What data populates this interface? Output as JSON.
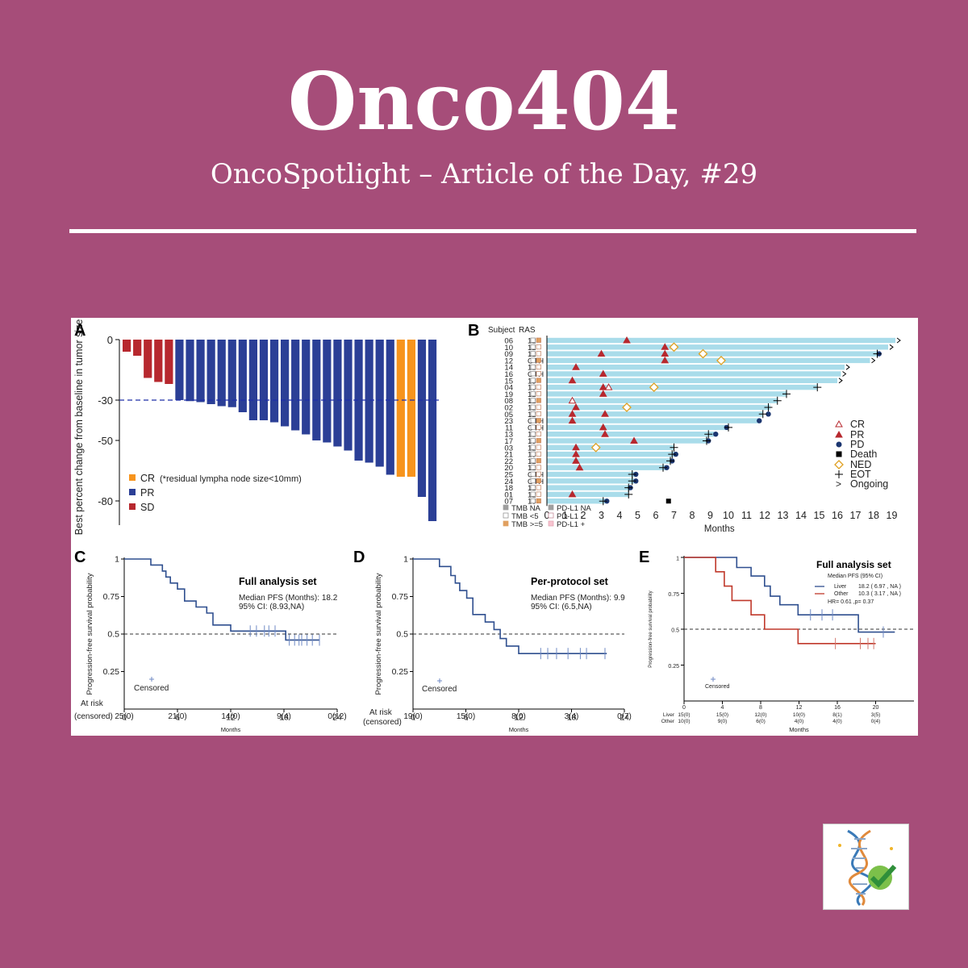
{
  "header": {
    "title": "Onco404",
    "subtitle": "OncoSpotlight – Article of the Day, #29"
  },
  "colors": {
    "background": "#a64d79",
    "cr": "#f7941d",
    "pr": "#2b3f96",
    "sd": "#b7282e",
    "swimmer_bar": "#a9dcea",
    "km_blue": "#2f4f8f",
    "km_red": "#c0392b"
  },
  "logo": {
    "icon": "dna-checkmark-icon"
  },
  "chart_data": [
    {
      "panel": "A",
      "type": "bar",
      "ylabel": "Best percent change from baseline in tumor size (%)",
      "yticks": [
        0,
        -30,
        -50,
        -80
      ],
      "ylim": [
        -92,
        0
      ],
      "reference_line": -30,
      "values": [
        -6,
        -8,
        -19,
        -21,
        -22,
        -30,
        -30.5,
        -31,
        -32,
        -33,
        -33.5,
        -36,
        -40,
        -40,
        -41,
        -43,
        -45,
        -47,
        -50,
        -51,
        -53,
        -55,
        -60,
        -61,
        -63,
        -67,
        -68,
        -68,
        -78,
        -90
      ],
      "categories": [
        "SD",
        "SD",
        "SD",
        "SD",
        "SD",
        "PR",
        "PR",
        "PR",
        "PR",
        "PR",
        "PR",
        "PR",
        "PR",
        "PR",
        "PR",
        "PR",
        "PR",
        "PR",
        "PR",
        "PR",
        "PR",
        "PR",
        "PR",
        "PR",
        "PR",
        "PR",
        "CR",
        "CR",
        "PR",
        "PR"
      ],
      "legend": [
        {
          "key": "CR",
          "label": "CR",
          "note": "(*residual lympha node size<10mm)"
        },
        {
          "key": "PR",
          "label": "PR"
        },
        {
          "key": "SD",
          "label": "SD"
        }
      ]
    },
    {
      "panel": "B",
      "type": "swimmer",
      "xlabel": "Months",
      "xticks": [
        0,
        1,
        2,
        3,
        4,
        5,
        6,
        7,
        8,
        9,
        10,
        11,
        12,
        13,
        14,
        15,
        16,
        17,
        18,
        19
      ],
      "header_subject": "Subject",
      "header_ras": "RAS",
      "subjects": [
        {
          "id": "06",
          "ras": "12",
          "dur": 19.2,
          "ongoing": true
        },
        {
          "id": "10",
          "ras": "12",
          "dur": 18.8,
          "ongoing": true
        },
        {
          "id": "09",
          "ras": "12",
          "dur": 18.3,
          "pd": 18.3
        },
        {
          "id": "12",
          "ras": "OTH",
          "dur": 17.8,
          "ongoing": true
        },
        {
          "id": "14",
          "ras": "12",
          "dur": 16.4,
          "ongoing": true
        },
        {
          "id": "16",
          "ras": "OTH",
          "dur": 16.2,
          "ongoing": true
        },
        {
          "id": "15",
          "ras": "13",
          "dur": 16.0,
          "ongoing": true
        },
        {
          "id": "04",
          "ras": "13",
          "dur": 14.9
        },
        {
          "id": "19",
          "ras": "12",
          "dur": 13.2
        },
        {
          "id": "08",
          "ras": "12",
          "dur": 12.7
        },
        {
          "id": "02",
          "ras": "12",
          "dur": 12.3
        },
        {
          "id": "05",
          "ras": "12",
          "dur": 11.9,
          "pd": 12.2
        },
        {
          "id": "23",
          "ras": "OTH",
          "dur": 11.7,
          "pd": 11.7
        },
        {
          "id": "11",
          "ras": "OTH",
          "dur": 10.0,
          "pd": 9.9
        },
        {
          "id": "13",
          "ras": "12",
          "dur": 9.2,
          "pd": 9.3
        },
        {
          "id": "17",
          "ras": "13",
          "dur": 8.9,
          "pd": 8.9
        },
        {
          "id": "03",
          "ras": "12",
          "dur": 7.0
        },
        {
          "id": "21",
          "ras": "13",
          "dur": 7.0,
          "pd": 7.1
        },
        {
          "id": "22",
          "ras": "12",
          "dur": 6.9,
          "pd": 6.9
        },
        {
          "id": "20",
          "ras": "12",
          "dur": 6.6,
          "pd": 6.6
        },
        {
          "id": "25",
          "ras": "OTH",
          "dur": 4.8,
          "pd": 4.9
        },
        {
          "id": "24",
          "ras": "OTH",
          "dur": 4.8,
          "pd": 4.9
        },
        {
          "id": "18",
          "ras": "12",
          "dur": 4.6,
          "pd": 4.6
        },
        {
          "id": "01",
          "ras": "12",
          "dur": 4.5
        },
        {
          "id": "07",
          "ras": "13",
          "dur": 3.2,
          "pd": 3.3
        }
      ],
      "responses": [
        {
          "row": 0,
          "t": 4.4,
          "type": "PR"
        },
        {
          "row": 1,
          "t": 6.5,
          "type": "PR"
        },
        {
          "row": 1,
          "t": 7.0,
          "type": "NED"
        },
        {
          "row": 2,
          "t": 3.0,
          "type": "PR"
        },
        {
          "row": 2,
          "t": 6.5,
          "type": "PR"
        },
        {
          "row": 2,
          "t": 8.6,
          "type": "NED"
        },
        {
          "row": 3,
          "t": 6.5,
          "type": "PR"
        },
        {
          "row": 3,
          "t": 9.6,
          "type": "NED"
        },
        {
          "row": 4,
          "t": 1.6,
          "type": "PR"
        },
        {
          "row": 5,
          "t": 3.1,
          "type": "PR"
        },
        {
          "row": 6,
          "t": 1.4,
          "type": "PR"
        },
        {
          "row": 7,
          "t": 3.1,
          "type": "PR"
        },
        {
          "row": 7,
          "t": 3.4,
          "type": "CR"
        },
        {
          "row": 7,
          "t": 5.9,
          "type": "NED"
        },
        {
          "row": 8,
          "t": 3.1,
          "type": "PR"
        },
        {
          "row": 9,
          "t": 1.4,
          "type": "CR"
        },
        {
          "row": 10,
          "t": 1.6,
          "type": "PR"
        },
        {
          "row": 10,
          "t": 4.4,
          "type": "NED"
        },
        {
          "row": 11,
          "t": 1.4,
          "type": "PR"
        },
        {
          "row": 11,
          "t": 3.2,
          "type": "PR"
        },
        {
          "row": 12,
          "t": 1.4,
          "type": "PR"
        },
        {
          "row": 13,
          "t": 3.1,
          "type": "PR"
        },
        {
          "row": 14,
          "t": 3.2,
          "type": "PR"
        },
        {
          "row": 15,
          "t": 4.8,
          "type": "PR"
        },
        {
          "row": 16,
          "t": 1.6,
          "type": "PR"
        },
        {
          "row": 16,
          "t": 2.7,
          "type": "NED"
        },
        {
          "row": 17,
          "t": 1.6,
          "type": "PR"
        },
        {
          "row": 18,
          "t": 1.6,
          "type": "PR"
        },
        {
          "row": 19,
          "t": 1.8,
          "type": "PR"
        },
        {
          "row": 23,
          "t": 1.4,
          "type": "PR"
        }
      ],
      "deaths": [
        {
          "row": 24,
          "t": 6.7
        }
      ],
      "eot": [
        {
          "row": 2,
          "t": 18.2
        },
        {
          "row": 7,
          "t": 14.9
        },
        {
          "row": 8,
          "t": 13.2
        },
        {
          "row": 9,
          "t": 12.7
        },
        {
          "row": 10,
          "t": 12.2
        },
        {
          "row": 11,
          "t": 11.9
        },
        {
          "row": 13,
          "t": 10.0
        },
        {
          "row": 14,
          "t": 8.9
        },
        {
          "row": 15,
          "t": 8.8
        },
        {
          "row": 16,
          "t": 7.0
        },
        {
          "row": 17,
          "t": 6.9
        },
        {
          "row": 18,
          "t": 6.8
        },
        {
          "row": 19,
          "t": 6.4
        },
        {
          "row": 20,
          "t": 4.7
        },
        {
          "row": 21,
          "t": 4.7
        },
        {
          "row": 22,
          "t": 4.5
        },
        {
          "row": 23,
          "t": 4.5
        },
        {
          "row": 24,
          "t": 3.1
        }
      ],
      "legend": [
        "CR",
        "PR",
        "PD",
        "Death",
        "NED",
        "EOT",
        "Ongoing"
      ],
      "biomarker_legend": [
        "TMB NA",
        "TMB <5",
        "TMB >=5",
        "PD-L1 NA",
        "PD-L1 -",
        "PD-L1 +"
      ]
    },
    {
      "panel": "C",
      "type": "line",
      "title": "Full analysis set",
      "subtitle1": "Median PFS (Months): 18.2",
      "subtitle2": "95% CI: (8.93,NA)",
      "ylabel": "Progression-free survival probability",
      "xlabel": "Months",
      "xticks": [
        0,
        6,
        12,
        18,
        24
      ],
      "yticks": [
        0.25,
        0.5,
        0.75,
        1
      ],
      "xlim": [
        0,
        24
      ],
      "ylim": [
        0,
        1
      ],
      "reference_line": 0.5,
      "censored_label": "Censored",
      "at_risk_label1": "At risk",
      "at_risk_label2": "(censored)",
      "at_risk": [
        "25(0)",
        "21(0)",
        "14(0)",
        "9(4)",
        "0(12)"
      ],
      "series": [
        {
          "x": [
            0,
            3,
            3,
            4.3,
            4.3,
            4.7,
            4.7,
            5.2,
            5.2,
            6.0,
            6.0,
            6.8,
            6.8,
            8.1,
            8.1,
            9.3,
            9.3,
            10.0,
            10.0,
            12.0,
            12.0,
            18.2,
            18.2,
            22.0
          ],
          "y": [
            1,
            1,
            0.96,
            0.96,
            0.92,
            0.92,
            0.88,
            0.88,
            0.84,
            0.84,
            0.8,
            0.8,
            0.72,
            0.72,
            0.68,
            0.68,
            0.64,
            0.64,
            0.56,
            0.56,
            0.52,
            0.52,
            0.46,
            0.46
          ]
        }
      ],
      "censor_x": [
        14.2,
        14.9,
        15.8,
        16.3,
        17.0,
        18.6,
        19.2,
        19.7,
        20.0,
        20.6,
        22.0,
        21.2
      ],
      "censor_y": [
        0.52,
        0.52,
        0.52,
        0.52,
        0.52,
        0.46,
        0.46,
        0.46,
        0.46,
        0.46,
        0.46,
        0.46
      ]
    },
    {
      "panel": "D",
      "type": "line",
      "title": "Per-protocol set",
      "subtitle1": "Median PFS (Months): 9.9",
      "subtitle2": "95% CI: (6.5,NA)",
      "ylabel": "Progression-free survival probability",
      "xlabel": "Months",
      "xticks": [
        0,
        6,
        12,
        18,
        24
      ],
      "yticks": [
        0.25,
        0.5,
        0.75,
        1
      ],
      "xlim": [
        0,
        24
      ],
      "ylim": [
        0,
        1
      ],
      "reference_line": 0.5,
      "censored_label": "Censored",
      "at_risk_label1": "At risk",
      "at_risk_label2": "(censored)",
      "at_risk": [
        "19(0)",
        "15(0)",
        "8(0)",
        "3(4)",
        "0(7)"
      ],
      "series": [
        {
          "x": [
            0,
            3,
            3,
            4.3,
            4.3,
            4.8,
            4.8,
            5.3,
            5.3,
            6.1,
            6.1,
            6.8,
            6.8,
            8.2,
            8.2,
            9.2,
            9.2,
            9.9,
            9.9,
            10.6,
            10.6,
            12.0,
            12.0,
            22.0
          ],
          "y": [
            1,
            1,
            0.95,
            0.95,
            0.89,
            0.89,
            0.84,
            0.84,
            0.79,
            0.79,
            0.74,
            0.74,
            0.63,
            0.63,
            0.58,
            0.58,
            0.53,
            0.53,
            0.47,
            0.47,
            0.42,
            0.42,
            0.37,
            0.37
          ]
        }
      ],
      "censor_x": [
        14.5,
        15.3,
        16.3,
        17.6,
        19.0,
        19.7,
        21.8
      ],
      "censor_y": [
        0.37,
        0.37,
        0.37,
        0.37,
        0.37,
        0.37,
        0.37
      ]
    },
    {
      "panel": "E",
      "type": "line",
      "title": "Full analysis set",
      "legend_header": "Median PFS   (95% CI)",
      "hr_text": "HR= 0.61 ,p= 0.37",
      "ylabel": "Progression-free survival probability",
      "xlabel": "Months",
      "xticks": [
        0,
        4,
        8,
        12,
        16,
        20
      ],
      "yticks": [
        0.25,
        0.5,
        0.75,
        1
      ],
      "xlim": [
        0,
        24
      ],
      "ylim": [
        0,
        1
      ],
      "reference_line": 0.5,
      "censored_label": "Censored",
      "at_risk_rows": [
        {
          "label": "Liver",
          "values": [
            "15(0)",
            "15(0)",
            "12(0)",
            "10(0)",
            "8(1)",
            "3(5)"
          ]
        },
        {
          "label": "Other",
          "values": [
            "10(0)",
            "9(0)",
            "6(0)",
            "4(0)",
            "4(0)",
            "0(4)"
          ]
        }
      ],
      "series": [
        {
          "name": "Liver",
          "label": "Liver",
          "stats": "18.2  ( 6.97 , NA )",
          "x": [
            0,
            5.5,
            5.5,
            7.0,
            7.0,
            8.4,
            8.4,
            9.0,
            9.0,
            10.0,
            10.0,
            11.9,
            11.9,
            18.2,
            18.2,
            22.0
          ],
          "y": [
            1,
            1,
            0.93,
            0.93,
            0.87,
            0.87,
            0.8,
            0.8,
            0.73,
            0.73,
            0.67,
            0.67,
            0.6,
            0.6,
            0.48,
            0.48
          ]
        },
        {
          "name": "Other",
          "label": "Other",
          "stats": "10.3  ( 3.17 , NA )",
          "x": [
            0,
            3.3,
            3.3,
            4.2,
            4.2,
            5.0,
            5.0,
            7.0,
            7.0,
            8.4,
            8.4,
            11.9,
            11.9,
            20.0
          ],
          "y": [
            1,
            1,
            0.9,
            0.9,
            0.8,
            0.8,
            0.7,
            0.7,
            0.6,
            0.6,
            0.5,
            0.5,
            0.4,
            0.4
          ]
        }
      ],
      "censor_liver_x": [
        13.2,
        14.4,
        15.5,
        20.8
      ],
      "censor_liver_y": [
        0.6,
        0.6,
        0.6,
        0.48
      ],
      "censor_other_x": [
        15.8,
        18.4,
        19.2,
        19.8
      ],
      "censor_other_y": [
        0.4,
        0.4,
        0.4,
        0.4
      ]
    }
  ],
  "panel_labels": [
    "A",
    "B",
    "C",
    "D",
    "E"
  ]
}
